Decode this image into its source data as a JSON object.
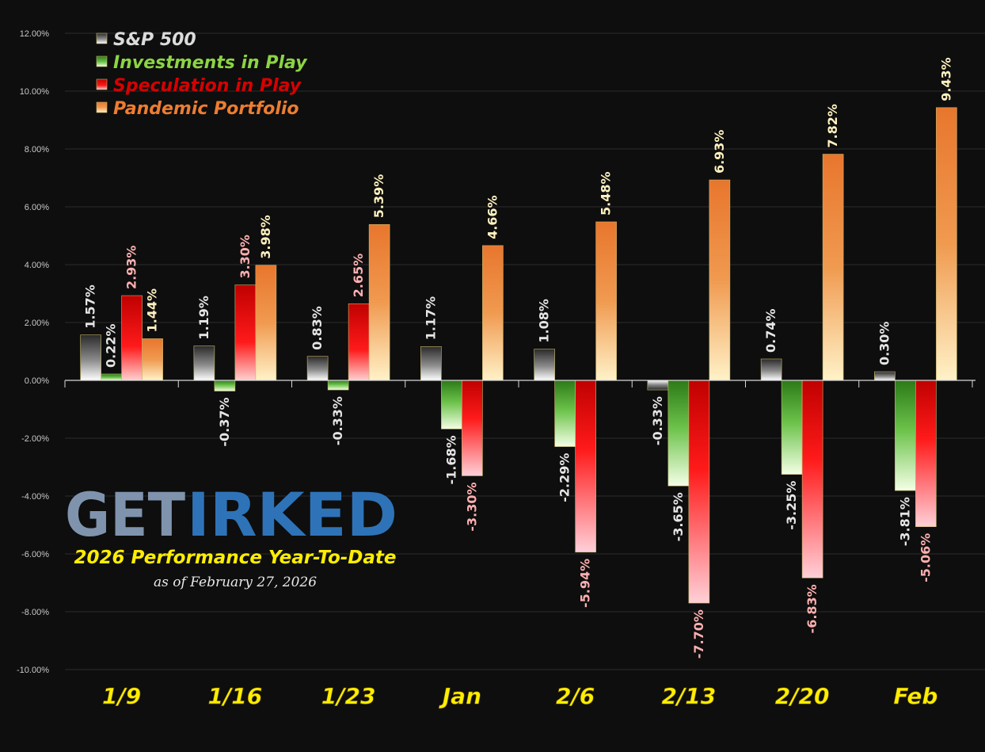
{
  "chart_data": {
    "type": "bar",
    "categories": [
      "1/9",
      "1/16",
      "1/23",
      "Jan",
      "2/6",
      "2/13",
      "2/20",
      "Feb"
    ],
    "series": [
      {
        "name": "S&P 500",
        "values": [
          1.57,
          1.19,
          0.83,
          1.17,
          1.08,
          -0.33,
          0.74,
          0.3
        ],
        "labels": [
          "1.57%",
          "1.19%",
          "0.83%",
          "1.17%",
          "1.08%",
          "-0.33%",
          "0.74%",
          "0.30%"
        ],
        "color": "#9a9a9a",
        "label_color": "#e6e6e6",
        "legend_color": "#dcdcdc"
      },
      {
        "name": "Investments in Play",
        "values": [
          0.22,
          -0.37,
          -0.33,
          -1.68,
          -2.29,
          -3.65,
          -3.25,
          -3.81
        ],
        "labels": [
          "0.22%",
          "-0.37%",
          "-0.33%",
          "-1.68%",
          "-2.29%",
          "-3.65%",
          "-3.25%",
          "-3.81%"
        ],
        "color": "#5aa832",
        "label_color": "#e6e6e6",
        "legend_color": "#8cd444"
      },
      {
        "name": "Speculation in Play",
        "values": [
          2.93,
          3.3,
          2.65,
          -3.3,
          -5.94,
          -7.7,
          -6.83,
          -5.06
        ],
        "labels": [
          "2.93%",
          "3.30%",
          "2.65%",
          "-3.30%",
          "-5.94%",
          "-7.70%",
          "-6.83%",
          "-5.06%"
        ],
        "color": "#e60000",
        "label_color": "#ffb0b0",
        "legend_color": "#d80000"
      },
      {
        "name": "Pandemic Portfolio",
        "values": [
          1.44,
          3.98,
          5.39,
          4.66,
          5.48,
          6.93,
          7.82,
          9.43
        ],
        "labels": [
          "1.44%",
          "3.98%",
          "5.39%",
          "4.66%",
          "5.48%",
          "6.93%",
          "7.82%",
          "9.43%"
        ],
        "color": "#ed7d31",
        "label_color": "#fff2c0",
        "legend_color": "#ed7d31"
      }
    ],
    "y_ticks": [
      "12.00%",
      "10.00%",
      "8.00%",
      "6.00%",
      "4.00%",
      "2.00%",
      "0.00%",
      "-2.00%",
      "-4.00%",
      "-6.00%",
      "-8.00%",
      "-10.00%"
    ],
    "ylim": [
      -10,
      12
    ],
    "grid": true,
    "legend_position": "top-left",
    "title": "",
    "xlabel": "",
    "ylabel": ""
  },
  "branding": {
    "logo_get": "GET",
    "logo_irked": "IRKED",
    "title": "2026 Performance Year-To-Date",
    "subtitle": "as of February 27, 2026"
  },
  "colors": {
    "background": "#0e0e0e",
    "category_label": "#ffee00",
    "gridline": "#2c2c2c"
  }
}
